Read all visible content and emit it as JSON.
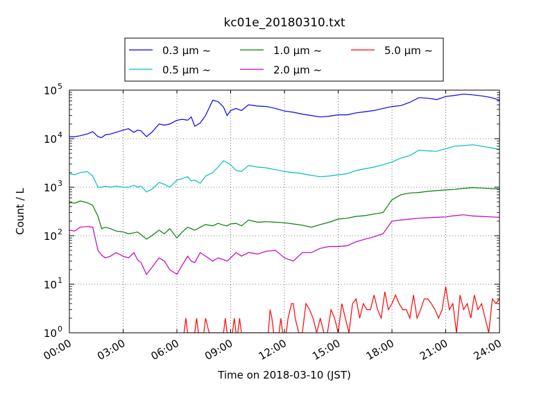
{
  "chart_data": {
    "type": "line",
    "title": "kc01e_20180310.txt",
    "xlabel": "Time on 2018-03-10 (JST)",
    "ylabel": "Count / L",
    "yscale": "log",
    "ylim": [
      1,
      100000
    ],
    "xlim": [
      "00:00",
      "24:00"
    ],
    "x_ticks": [
      "00:00",
      "03:00",
      "06:00",
      "09:00",
      "12:00",
      "15:00",
      "18:00",
      "21:00",
      "24:00"
    ],
    "y_ticks": [
      {
        "base": "10",
        "exp": "0"
      },
      {
        "base": "10",
        "exp": "1"
      },
      {
        "base": "10",
        "exp": "2"
      },
      {
        "base": "10",
        "exp": "3"
      },
      {
        "base": "10",
        "exp": "4"
      },
      {
        "base": "10",
        "exp": "5"
      }
    ],
    "grid": true,
    "legend_position": "top-center",
    "x_unit": "hours",
    "series": [
      {
        "name": "0.3 μm ~",
        "color": "#0000ff",
        "x": [
          0.0,
          0.3,
          0.6,
          1.0,
          1.3,
          1.6,
          1.8,
          2.0,
          2.3,
          2.6,
          3.0,
          3.3,
          3.6,
          3.8,
          4.0,
          4.3,
          4.6,
          5.0,
          5.3,
          5.6,
          6.0,
          6.3,
          6.6,
          6.8,
          7.0,
          7.3,
          7.6,
          8.0,
          8.3,
          8.6,
          8.8,
          9.0,
          9.3,
          9.6,
          10.0,
          10.5,
          11.0,
          11.5,
          12.0,
          12.5,
          13.0,
          13.5,
          14.0,
          14.5,
          15.0,
          15.5,
          16.0,
          16.5,
          17.0,
          17.5,
          18.0,
          18.5,
          19.0,
          19.5,
          20.0,
          20.5,
          21.0,
          21.5,
          22.0,
          22.5,
          23.0,
          23.5,
          24.0
        ],
        "values": [
          11000,
          11000,
          11500,
          12500,
          14000,
          11000,
          10500,
          12000,
          12500,
          13500,
          15000,
          16000,
          13500,
          15000,
          14500,
          11000,
          13500,
          20000,
          19000,
          20000,
          24000,
          25000,
          24000,
          28000,
          18000,
          21000,
          30000,
          62000,
          58000,
          45000,
          30000,
          38000,
          42000,
          38000,
          50000,
          47000,
          46000,
          42000,
          37000,
          35000,
          32000,
          30000,
          28000,
          29000,
          31000,
          31000,
          34000,
          36000,
          38000,
          42000,
          46000,
          48000,
          56000,
          70000,
          68000,
          64000,
          74000,
          78000,
          83000,
          80000,
          76000,
          71000,
          62000
        ]
      },
      {
        "name": "0.5 μm ~",
        "color": "#00bfbf",
        "x": [
          0.0,
          0.3,
          0.6,
          1.0,
          1.3,
          1.6,
          1.8,
          2.0,
          2.3,
          2.6,
          3.0,
          3.3,
          3.6,
          3.8,
          4.0,
          4.3,
          4.6,
          5.0,
          5.3,
          5.6,
          6.0,
          6.3,
          6.6,
          6.8,
          7.0,
          7.3,
          7.6,
          8.0,
          8.3,
          8.6,
          8.8,
          9.0,
          9.3,
          9.6,
          10.0,
          10.5,
          11.0,
          11.5,
          12.0,
          12.5,
          13.0,
          13.5,
          14.0,
          14.5,
          15.0,
          15.5,
          16.0,
          16.5,
          17.0,
          17.5,
          18.0,
          18.5,
          19.0,
          19.5,
          20.0,
          20.5,
          21.0,
          21.5,
          22.0,
          22.5,
          23.0,
          23.5,
          24.0
        ],
        "values": [
          1900,
          1800,
          2000,
          2100,
          1700,
          1000,
          1000,
          1050,
          1000,
          1050,
          1000,
          1000,
          1100,
          1000,
          1050,
          800,
          900,
          1250,
          1150,
          1000,
          1400,
          1500,
          1650,
          1350,
          1400,
          1200,
          1700,
          2000,
          2600,
          3500,
          3200,
          2900,
          2200,
          2100,
          2800,
          2600,
          2500,
          2300,
          2100,
          2000,
          1900,
          1750,
          1650,
          1700,
          1800,
          1900,
          2200,
          2400,
          2600,
          2900,
          3300,
          4000,
          4500,
          5800,
          5600,
          5500,
          6200,
          7000,
          7200,
          7500,
          7000,
          6500,
          6000
        ]
      },
      {
        "name": "1.0 μm ~",
        "color": "#008000",
        "x": [
          0.0,
          0.3,
          0.6,
          1.0,
          1.3,
          1.6,
          1.8,
          2.0,
          2.3,
          2.6,
          3.0,
          3.3,
          3.6,
          3.8,
          4.0,
          4.3,
          4.6,
          5.0,
          5.3,
          5.6,
          6.0,
          6.3,
          6.6,
          6.8,
          7.0,
          7.3,
          7.6,
          8.0,
          8.3,
          8.6,
          8.8,
          9.0,
          9.3,
          9.6,
          10.0,
          10.5,
          11.0,
          11.5,
          12.0,
          12.5,
          13.0,
          13.5,
          14.0,
          14.5,
          15.0,
          15.5,
          16.0,
          16.5,
          17.0,
          17.5,
          18.0,
          18.5,
          19.0,
          19.5,
          20.0,
          20.5,
          21.0,
          21.5,
          22.0,
          22.5,
          23.0,
          23.5,
          24.0
        ],
        "values": [
          480,
          470,
          520,
          480,
          420,
          250,
          140,
          150,
          140,
          125,
          120,
          110,
          115,
          120,
          105,
          85,
          100,
          130,
          110,
          140,
          90,
          120,
          150,
          140,
          130,
          150,
          170,
          160,
          180,
          165,
          160,
          175,
          180,
          160,
          210,
          190,
          195,
          190,
          185,
          175,
          165,
          150,
          170,
          190,
          220,
          230,
          250,
          260,
          280,
          300,
          550,
          700,
          760,
          780,
          820,
          850,
          880,
          900,
          950,
          980,
          960,
          940,
          920
        ]
      },
      {
        "name": "2.0 μm ~",
        "color": "#bf00bf",
        "x": [
          0.0,
          0.3,
          0.6,
          1.0,
          1.3,
          1.6,
          1.8,
          2.0,
          2.3,
          2.6,
          3.0,
          3.3,
          3.6,
          3.8,
          4.0,
          4.3,
          4.6,
          5.0,
          5.3,
          5.6,
          6.0,
          6.3,
          6.6,
          6.8,
          7.0,
          7.3,
          7.6,
          8.0,
          8.3,
          8.6,
          8.8,
          9.0,
          9.3,
          9.6,
          10.0,
          10.5,
          11.0,
          11.5,
          12.0,
          12.5,
          13.0,
          13.5,
          14.0,
          14.5,
          15.0,
          15.5,
          16.0,
          16.5,
          17.0,
          17.5,
          18.0,
          18.5,
          19.0,
          19.5,
          20.0,
          20.5,
          21.0,
          21.5,
          22.0,
          22.5,
          23.0,
          23.5,
          24.0
        ],
        "values": [
          130,
          125,
          150,
          155,
          150,
          50,
          40,
          35,
          38,
          45,
          38,
          35,
          45,
          32,
          28,
          16,
          22,
          35,
          30,
          20,
          16,
          25,
          38,
          30,
          28,
          45,
          38,
          30,
          35,
          32,
          30,
          35,
          45,
          38,
          45,
          42,
          48,
          50,
          35,
          30,
          45,
          45,
          55,
          60,
          60,
          62,
          75,
          85,
          95,
          110,
          200,
          210,
          220,
          230,
          235,
          240,
          245,
          260,
          270,
          255,
          250,
          245,
          240
        ]
      },
      {
        "name": "5.0 μm ~",
        "color": "#ff0000",
        "x": [
          6.4,
          6.5,
          6.6,
          6.7,
          7.0,
          7.1,
          7.2,
          7.4,
          7.5,
          7.6,
          7.8,
          7.9,
          8.0,
          8.6,
          8.7,
          8.8,
          9.0,
          9.1,
          9.2,
          9.3,
          9.4,
          9.5,
          9.6,
          11.0,
          11.1,
          11.2,
          11.3,
          11.4,
          11.5,
          11.6,
          11.7,
          11.8,
          11.9,
          12.0,
          12.1,
          12.2,
          12.4,
          12.5,
          12.6,
          12.8,
          13.0,
          13.2,
          13.4,
          13.6,
          13.8,
          14.0,
          14.2,
          14.4,
          14.6,
          14.8,
          15.0,
          15.2,
          15.4,
          15.6,
          15.8,
          16.0,
          16.2,
          16.4,
          16.6,
          16.8,
          17.0,
          17.2,
          17.4,
          17.6,
          17.8,
          18.0,
          18.2,
          18.4,
          18.6,
          18.8,
          19.0,
          19.2,
          19.4,
          19.6,
          19.8,
          20.0,
          20.2,
          20.4,
          20.6,
          20.8,
          21.0,
          21.2,
          21.4,
          21.6,
          21.8,
          22.0,
          22.2,
          22.4,
          22.6,
          22.8,
          23.0,
          23.2,
          23.4,
          23.6,
          23.8,
          24.0
        ],
        "values": [
          1,
          2,
          1,
          1,
          1,
          2,
          1,
          1,
          1,
          2,
          1,
          1,
          1,
          1,
          2,
          1,
          1,
          1,
          2,
          1,
          1,
          2,
          1,
          1,
          1,
          3,
          2,
          1,
          1,
          1,
          1,
          2,
          1,
          1,
          1,
          2,
          4,
          4,
          2,
          1,
          1,
          4,
          3,
          2,
          1,
          2,
          1,
          1,
          3,
          2,
          1,
          4,
          2,
          1,
          4,
          5,
          2,
          4,
          3,
          3,
          6,
          3,
          2,
          7,
          3,
          4,
          6,
          4,
          3,
          3,
          2,
          6,
          2,
          3,
          5,
          5,
          4,
          3,
          2,
          3,
          9,
          3,
          4,
          1,
          6,
          3,
          4,
          2,
          6,
          3,
          4,
          2,
          1,
          5,
          4,
          5
        ]
      }
    ]
  }
}
